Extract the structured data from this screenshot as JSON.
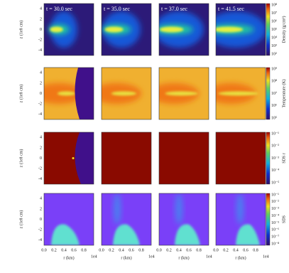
{
  "panels": {
    "times": [
      "t = 30.0 sec",
      "t = 35.0 sec",
      "t = 37.0 sec",
      "t = 41.5 sec"
    ]
  },
  "axes": {
    "y_label": "z (1e8 cm)",
    "y_ticks": [
      "4",
      "2",
      "0",
      "-2",
      "-4"
    ],
    "x_label": "r (km)",
    "x_ticks": [
      "0.0",
      "0.2",
      "0.4",
      "0.6",
      "0.8"
    ],
    "x_offset": "1e4"
  },
  "colorbars": [
    {
      "label": "Density (g/cm³)",
      "ticks": [
        "10⁸",
        "10⁷",
        "10⁶",
        "10⁵",
        "10⁴",
        "10³",
        "10²"
      ]
    },
    {
      "label": "Temperature (K)",
      "ticks": [
        "10⁹",
        "10⁸",
        "10⁷",
        "10⁶",
        "10⁵"
      ]
    },
    {
      "label": "SDS r",
      "ticks": [
        "10⁻¹",
        "10⁻²",
        "10⁻³",
        "10⁻⁴",
        "10⁻⁵"
      ]
    },
    {
      "label": "SDS",
      "ticks": [
        "10⁻¹",
        "10⁻²",
        "10⁻³",
        "10⁻⁴",
        "10⁻⁵",
        "10⁻⁶",
        "10⁻⁷",
        "10⁻⁸"
      ]
    }
  ]
}
